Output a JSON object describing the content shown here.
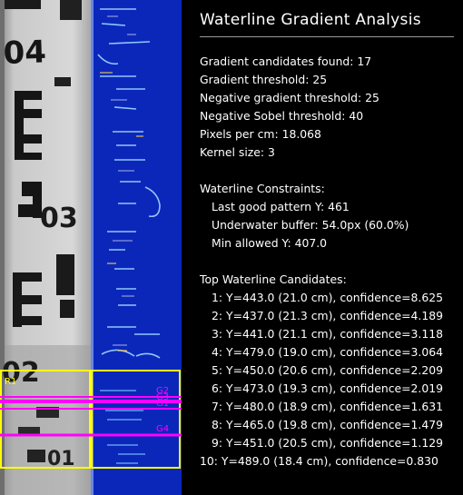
{
  "title": "Waterline Gradient Analysis",
  "stats": [
    "Gradient candidates found: 17",
    "Gradient threshold: 25",
    "Negative gradient threshold: 25",
    "Negative Sobel threshold: 40",
    "Pixels per cm: 18.068",
    "Kernel size: 3"
  ],
  "constraints": {
    "heading": "Waterline Constraints:",
    "items": [
      "Last good pattern Y: 461",
      "Underwater buffer: 54.0px (60.0%)",
      "Min allowed Y: 407.0"
    ]
  },
  "candidates": {
    "heading": "Top Waterline Candidates:",
    "items": [
      "1: Y=443.0 (21.0 cm), confidence=8.625",
      "2: Y=437.0 (21.3 cm), confidence=4.189",
      "3: Y=441.0 (21.1 cm), confidence=3.118",
      "4: Y=479.0 (19.0 cm), confidence=3.064",
      "5: Y=450.0 (20.6 cm), confidence=2.209",
      "6: Y=473.0 (19.3 cm), confidence=2.019",
      "7: Y=480.0 (18.9 cm), confidence=1.631",
      "8: Y=465.0 (19.8 cm), confidence=1.479",
      "9: Y=451.0 (20.5 cm), confidence=1.129",
      "10: Y=489.0 (18.4 cm), confidence=0.830"
    ]
  },
  "overlay": {
    "roi_label": "R1",
    "candidate_labels": [
      "G2",
      "G3",
      "G1",
      "G4"
    ],
    "colors": {
      "roi": "#ffff00",
      "candidate": "#ff00ff",
      "gradient_bg": "#0a2bc9"
    }
  },
  "gauge_labels": [
    "04",
    "03",
    "02",
    "01"
  ]
}
